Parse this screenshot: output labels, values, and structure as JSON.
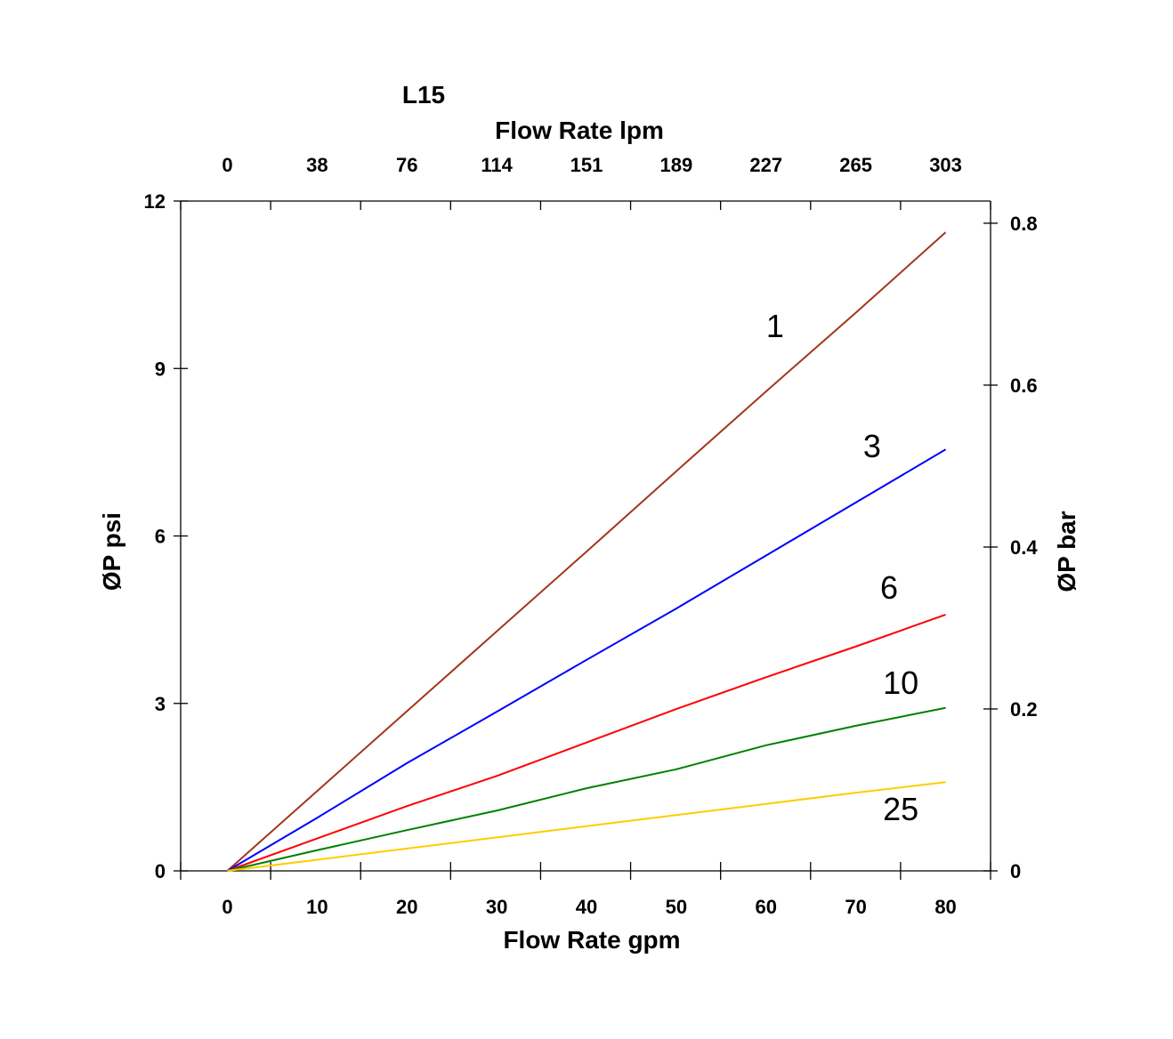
{
  "chart_data": {
    "type": "line",
    "title": "L15",
    "xlabel": "Flow Rate gpm",
    "x2label": "Flow Rate lpm",
    "ylabel": "ØP psi",
    "y2label": "ØP bar",
    "xlim": [
      -5.2,
      85
    ],
    "ylim": [
      0,
      12
    ],
    "y2lim": [
      0,
      0.8274
    ],
    "grid": false,
    "x_ticks": [
      0,
      10,
      20,
      30,
      40,
      50,
      60,
      70,
      80
    ],
    "x_tick_labels": [
      "0",
      "10",
      "20",
      "30",
      "40",
      "50",
      "60",
      "70",
      "80"
    ],
    "x2_tick_labels": [
      "0",
      "38",
      "76",
      "114",
      "151",
      "189",
      "227",
      "265",
      "303"
    ],
    "y_ticks": [
      0,
      3,
      6,
      9,
      12
    ],
    "y_tick_labels": [
      "0",
      "3",
      "6",
      "9",
      "12"
    ],
    "y2_ticks": [
      0,
      0.2,
      0.4,
      0.6,
      0.8
    ],
    "y2_tick_labels": [
      "0",
      "0.2",
      "0.4",
      "0.6",
      "0.8"
    ],
    "x": [
      0,
      10,
      20,
      30,
      40,
      50,
      60,
      70,
      80
    ],
    "series": [
      {
        "name": "1",
        "color": "#a0381a",
        "values": [
          0,
          1.43,
          2.86,
          4.29,
          5.72,
          7.16,
          8.59,
          10.0,
          11.44
        ],
        "label_at": [
          61,
          9.75
        ]
      },
      {
        "name": "3",
        "color": "#0000ff",
        "values": [
          0,
          0.95,
          1.93,
          2.85,
          3.78,
          4.7,
          5.65,
          6.6,
          7.55
        ],
        "label_at": [
          71.8,
          7.6
        ]
      },
      {
        "name": "6",
        "color": "#ff0000",
        "values": [
          0,
          0.58,
          1.16,
          1.7,
          2.3,
          2.9,
          3.47,
          4.02,
          4.59
        ],
        "label_at": [
          73.7,
          5.07
        ]
      },
      {
        "name": "10",
        "color": "#008000",
        "values": [
          0,
          0.37,
          0.73,
          1.08,
          1.48,
          1.82,
          2.25,
          2.6,
          2.92
        ],
        "label_at": [
          75,
          3.36
        ]
      },
      {
        "name": "25",
        "color": "#ffcc00",
        "values": [
          0,
          0.2,
          0.4,
          0.6,
          0.8,
          1.0,
          1.2,
          1.4,
          1.59
        ],
        "label_at": [
          75,
          1.1
        ]
      }
    ]
  }
}
